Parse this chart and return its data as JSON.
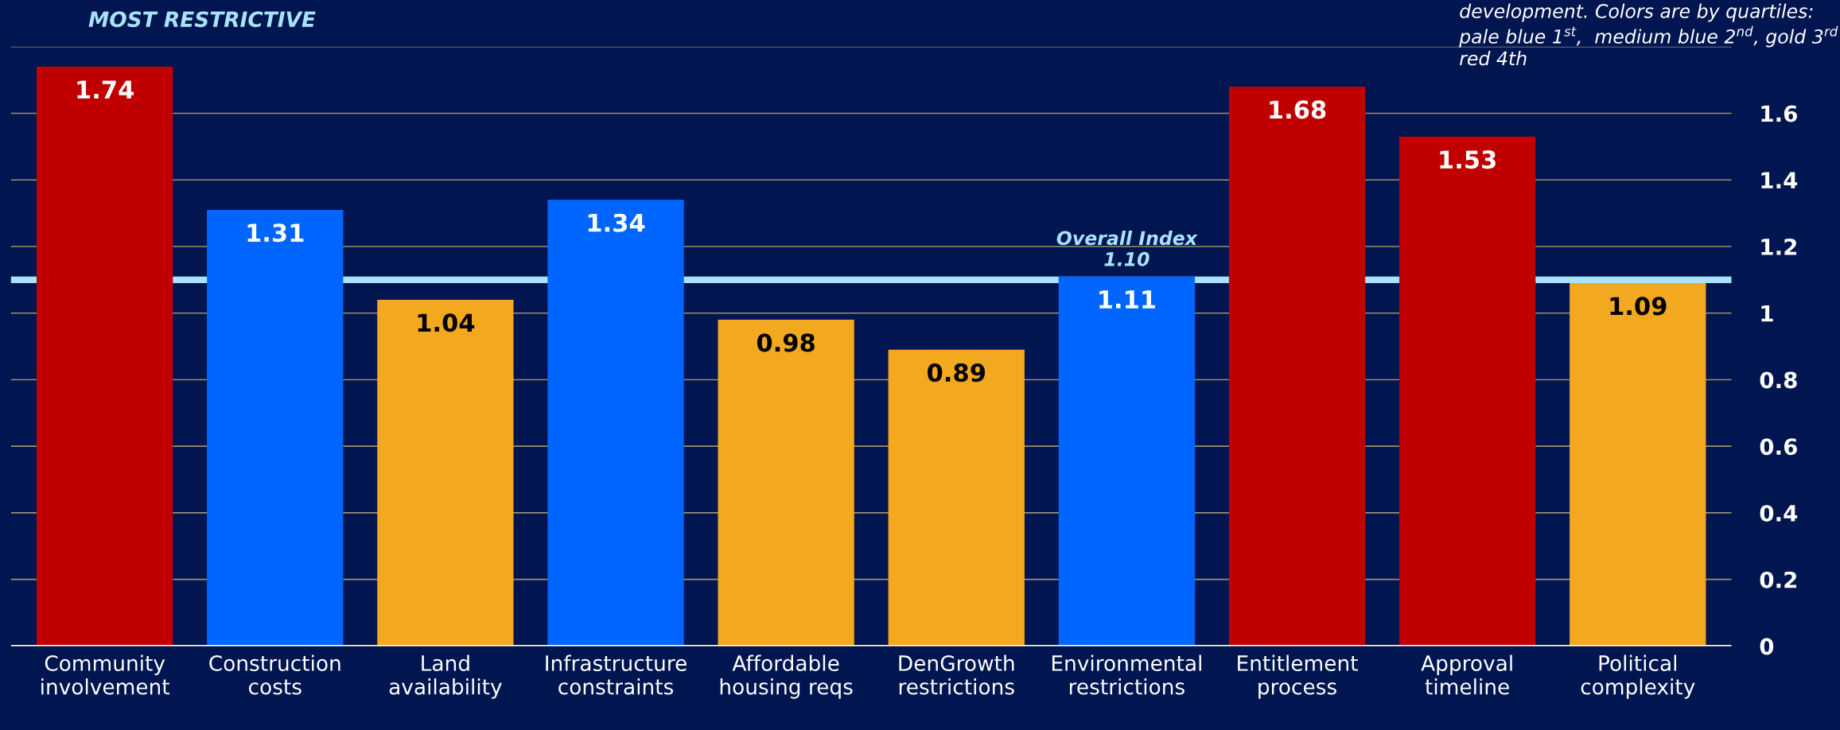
{
  "chart_data": {
    "type": "bar",
    "categories": [
      "Community\ninvolvement",
      "Construction\ncosts",
      "Land\navailability",
      "Infrastructure\nconstraints",
      "Affordable\nhousing reqs",
      "DenGrowth\nrestrictions",
      "Environmental\nrestrictions",
      "Entitlement\nprocess",
      "Approval\ntimeline",
      "Political\ncomplexity"
    ],
    "values": [
      1.74,
      1.31,
      1.04,
      1.34,
      0.98,
      0.89,
      1.11,
      1.68,
      1.53,
      1.09
    ],
    "colors": [
      "#c00000",
      "#0066ff",
      "#f2a81f",
      "#0066ff",
      "#f2a81f",
      "#f2a81f",
      "#0066ff",
      "#c00000",
      "#c00000",
      "#f2a81f"
    ],
    "data_labels": true,
    "ylim": [
      0,
      1.8
    ],
    "yticks": [
      0,
      0.2,
      0.4,
      0.6,
      0.8,
      1,
      1.2,
      1.4,
      1.6,
      {
        "value": 1.8,
        "label": null
      }
    ],
    "grid": "y",
    "ref_lines": [
      {
        "axis": "y",
        "value": 1.1,
        "label": "Overall Index\n1.10",
        "color": "#a9e3fb"
      }
    ],
    "annotations": [
      "MOST RESTRICTIVE",
      "development. Colors are by quartiles:\npale blue 1$^{st}$,  medium blue 2$^{nd}$, gold 3$^{rd}$\nred 4th"
    ]
  }
}
